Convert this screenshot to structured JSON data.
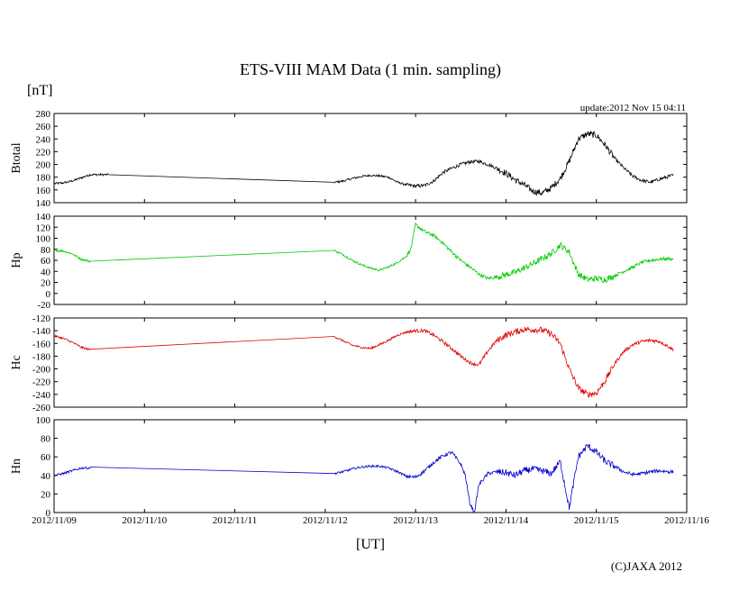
{
  "chart_data": {
    "type": "line",
    "title": "ETS-VIII MAM Data (1 min. sampling)",
    "unit_label": "[nT]",
    "update_text": "update:2012 Nov 15 04:11",
    "xlabel": "[UT]",
    "copyright": "(C)JAXA 2012",
    "x_ticks": [
      "2012/11/09",
      "2012/11/10",
      "2012/11/11",
      "2012/11/12",
      "2012/11/13",
      "2012/11/14",
      "2012/11/15",
      "2012/11/16"
    ],
    "xlim_days": [
      0,
      7
    ],
    "panels": [
      {
        "ylabel": "Btotal",
        "color": "#000000",
        "ylim": [
          140,
          280
        ],
        "yticks": [
          140,
          160,
          180,
          200,
          220,
          240,
          260,
          280
        ],
        "points": [
          [
            0.0,
            170
          ],
          [
            0.1,
            171
          ],
          [
            0.2,
            174
          ],
          [
            0.3,
            179
          ],
          [
            0.4,
            184
          ],
          [
            0.6,
            184
          ],
          [
            3.1,
            172
          ],
          [
            3.2,
            174
          ],
          [
            3.3,
            178
          ],
          [
            3.4,
            181
          ],
          [
            3.5,
            183
          ],
          [
            3.6,
            182
          ],
          [
            3.7,
            180
          ],
          [
            3.8,
            172
          ],
          [
            3.9,
            168
          ],
          [
            4.0,
            166
          ],
          [
            4.1,
            167
          ],
          [
            4.2,
            174
          ],
          [
            4.3,
            187
          ],
          [
            4.4,
            194
          ],
          [
            4.5,
            200
          ],
          [
            4.6,
            204
          ],
          [
            4.7,
            205
          ],
          [
            4.8,
            200
          ],
          [
            4.9,
            194
          ],
          [
            5.0,
            186
          ],
          [
            5.1,
            176
          ],
          [
            5.2,
            168
          ],
          [
            5.3,
            158
          ],
          [
            5.4,
            155
          ],
          [
            5.5,
            163
          ],
          [
            5.6,
            178
          ],
          [
            5.7,
            205
          ],
          [
            5.8,
            240
          ],
          [
            5.9,
            248
          ],
          [
            6.0,
            246
          ],
          [
            6.1,
            230
          ],
          [
            6.2,
            210
          ],
          [
            6.3,
            195
          ],
          [
            6.4,
            182
          ],
          [
            6.5,
            175
          ],
          [
            6.6,
            172
          ],
          [
            6.7,
            177
          ],
          [
            6.8,
            181
          ],
          [
            6.85,
            183
          ]
        ]
      },
      {
        "ylabel": "Hp",
        "color": "#00cc00",
        "ylim": [
          -20,
          140
        ],
        "yticks": [
          -20,
          0,
          20,
          40,
          60,
          80,
          100,
          120,
          140
        ],
        "points": [
          [
            0.0,
            78
          ],
          [
            0.1,
            77
          ],
          [
            0.2,
            72
          ],
          [
            0.3,
            62
          ],
          [
            0.4,
            58
          ],
          [
            3.1,
            78
          ],
          [
            3.2,
            70
          ],
          [
            3.3,
            60
          ],
          [
            3.4,
            52
          ],
          [
            3.5,
            46
          ],
          [
            3.6,
            42
          ],
          [
            3.7,
            48
          ],
          [
            3.8,
            56
          ],
          [
            3.9,
            68
          ],
          [
            3.95,
            82
          ],
          [
            4.0,
            125
          ],
          [
            4.05,
            118
          ],
          [
            4.1,
            112
          ],
          [
            4.2,
            105
          ],
          [
            4.3,
            92
          ],
          [
            4.4,
            75
          ],
          [
            4.5,
            60
          ],
          [
            4.6,
            48
          ],
          [
            4.7,
            35
          ],
          [
            4.8,
            27
          ],
          [
            4.9,
            30
          ],
          [
            5.0,
            34
          ],
          [
            5.1,
            38
          ],
          [
            5.2,
            46
          ],
          [
            5.3,
            54
          ],
          [
            5.4,
            63
          ],
          [
            5.5,
            72
          ],
          [
            5.6,
            88
          ],
          [
            5.7,
            75
          ],
          [
            5.8,
            35
          ],
          [
            5.9,
            25
          ],
          [
            6.0,
            27
          ],
          [
            6.1,
            25
          ],
          [
            6.2,
            32
          ],
          [
            6.3,
            40
          ],
          [
            6.4,
            47
          ],
          [
            6.5,
            56
          ],
          [
            6.6,
            60
          ],
          [
            6.7,
            62
          ],
          [
            6.8,
            63
          ],
          [
            6.85,
            62
          ]
        ]
      },
      {
        "ylabel": "Hc",
        "color": "#e00000",
        "ylim": [
          -260,
          -120
        ],
        "yticks": [
          -260,
          -240,
          -220,
          -200,
          -180,
          -160,
          -140,
          -120
        ],
        "points": [
          [
            0.0,
            -148
          ],
          [
            0.1,
            -152
          ],
          [
            0.2,
            -158
          ],
          [
            0.3,
            -166
          ],
          [
            0.4,
            -170
          ],
          [
            3.1,
            -149
          ],
          [
            3.2,
            -156
          ],
          [
            3.3,
            -163
          ],
          [
            3.4,
            -166
          ],
          [
            3.5,
            -168
          ],
          [
            3.6,
            -162
          ],
          [
            3.7,
            -155
          ],
          [
            3.8,
            -147
          ],
          [
            3.9,
            -142
          ],
          [
            4.0,
            -140
          ],
          [
            4.1,
            -140
          ],
          [
            4.2,
            -147
          ],
          [
            4.3,
            -157
          ],
          [
            4.4,
            -168
          ],
          [
            4.5,
            -180
          ],
          [
            4.6,
            -190
          ],
          [
            4.7,
            -194
          ],
          [
            4.8,
            -172
          ],
          [
            4.9,
            -155
          ],
          [
            5.0,
            -147
          ],
          [
            5.1,
            -142
          ],
          [
            5.2,
            -138
          ],
          [
            5.3,
            -138
          ],
          [
            5.4,
            -139
          ],
          [
            5.5,
            -145
          ],
          [
            5.6,
            -160
          ],
          [
            5.7,
            -200
          ],
          [
            5.8,
            -230
          ],
          [
            5.9,
            -240
          ],
          [
            6.0,
            -238
          ],
          [
            6.1,
            -218
          ],
          [
            6.2,
            -192
          ],
          [
            6.3,
            -173
          ],
          [
            6.4,
            -162
          ],
          [
            6.5,
            -157
          ],
          [
            6.6,
            -155
          ],
          [
            6.7,
            -157
          ],
          [
            6.8,
            -165
          ],
          [
            6.85,
            -170
          ]
        ]
      },
      {
        "ylabel": "Hn",
        "color": "#0000cc",
        "ylim": [
          0,
          100
        ],
        "yticks": [
          0,
          20,
          40,
          60,
          80,
          100
        ],
        "points": [
          [
            0.0,
            40
          ],
          [
            0.1,
            42
          ],
          [
            0.2,
            45
          ],
          [
            0.3,
            48
          ],
          [
            0.4,
            48
          ],
          [
            3.1,
            42
          ],
          [
            3.2,
            44
          ],
          [
            3.3,
            47
          ],
          [
            3.4,
            49
          ],
          [
            3.5,
            50
          ],
          [
            3.6,
            50
          ],
          [
            3.7,
            48
          ],
          [
            3.8,
            44
          ],
          [
            3.9,
            39
          ],
          [
            4.0,
            38
          ],
          [
            4.1,
            45
          ],
          [
            4.2,
            54
          ],
          [
            4.3,
            61
          ],
          [
            4.4,
            65
          ],
          [
            4.5,
            52
          ],
          [
            4.55,
            40
          ],
          [
            4.6,
            10
          ],
          [
            4.65,
            0
          ],
          [
            4.7,
            30
          ],
          [
            4.8,
            42
          ],
          [
            4.9,
            44
          ],
          [
            5.0,
            43
          ],
          [
            5.1,
            40
          ],
          [
            5.2,
            45
          ],
          [
            5.3,
            47
          ],
          [
            5.4,
            45
          ],
          [
            5.5,
            42
          ],
          [
            5.6,
            55
          ],
          [
            5.7,
            5
          ],
          [
            5.8,
            60
          ],
          [
            5.9,
            72
          ],
          [
            6.0,
            65
          ],
          [
            6.1,
            55
          ],
          [
            6.2,
            50
          ],
          [
            6.3,
            44
          ],
          [
            6.4,
            41
          ],
          [
            6.5,
            42
          ],
          [
            6.6,
            44
          ],
          [
            6.7,
            45
          ],
          [
            6.8,
            44
          ],
          [
            6.85,
            44
          ]
        ]
      }
    ]
  }
}
